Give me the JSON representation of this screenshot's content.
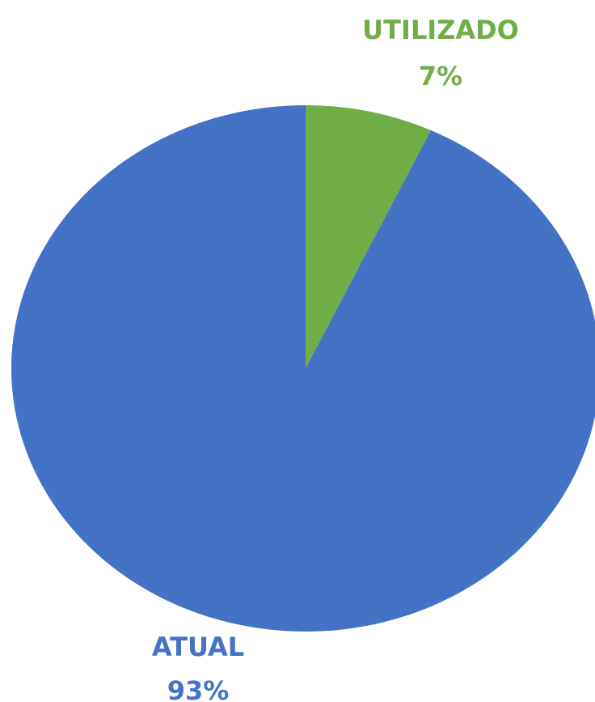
{
  "chart_data": {
    "type": "pie",
    "title": "",
    "slices": [
      {
        "label": "UTILIZADO",
        "value": 7,
        "value_label": "7%",
        "color": "#70ad47"
      },
      {
        "label": "ATUAL",
        "value": 93,
        "value_label": "93%",
        "color": "#4472c4"
      }
    ],
    "start_angle_deg": 0,
    "direction": "clockwise",
    "legend": "none",
    "data_labels": "outside"
  }
}
